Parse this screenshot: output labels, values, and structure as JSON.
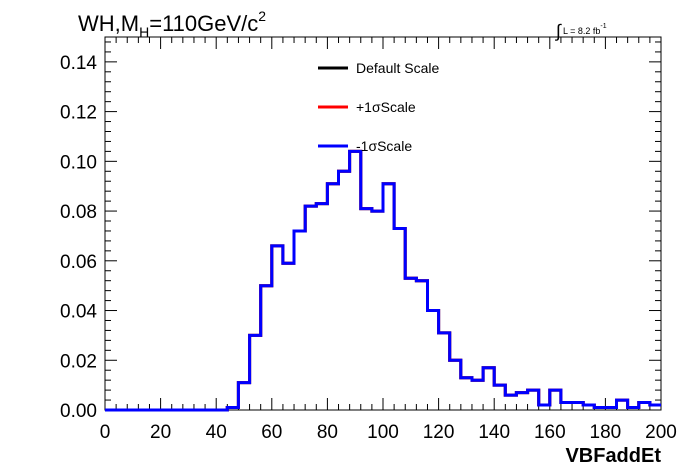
{
  "header": {
    "title_main": "WH,M",
    "title_sub": "H",
    "title_rest": "=110GeV/c",
    "title_sup": "2",
    "lumi_symbol": "∫",
    "lumi_text": "L = 8.2 fb",
    "lumi_sup": "-1"
  },
  "chart_data": {
    "type": "line",
    "title": "WH,M_H=110GeV/c^2",
    "xlabel": "VBFaddEt",
    "ylabel": "",
    "xlim": [
      0,
      200
    ],
    "ylim": [
      0,
      0.15
    ],
    "x_ticks": [
      "0",
      "20",
      "40",
      "60",
      "80",
      "100",
      "120",
      "140",
      "160",
      "180",
      "200"
    ],
    "y_ticks": [
      "0.00",
      "0.02",
      "0.04",
      "0.06",
      "0.08",
      "0.10",
      "0.12",
      "0.14"
    ],
    "grid": false,
    "legend_position": "top-center",
    "bin_width": 4,
    "bin_edges_start": 0,
    "series": [
      {
        "name": "Default Scale",
        "color": "#000000",
        "values": [
          0,
          0,
          0,
          0,
          0,
          0,
          0,
          0,
          0,
          0,
          0,
          0.001,
          0.011,
          0.03,
          0.05,
          0.066,
          0.059,
          0.072,
          0.082,
          0.083,
          0.091,
          0.096,
          0.104,
          0.081,
          0.08,
          0.091,
          0.073,
          0.053,
          0.052,
          0.04,
          0.031,
          0.02,
          0.013,
          0.012,
          0.017,
          0.01,
          0.006,
          0.007,
          0.008,
          0.002,
          0.008,
          0.003,
          0.003,
          0.002,
          0.001,
          0.001,
          0.004,
          0.001,
          0.003,
          0.002
        ]
      },
      {
        "name": "+1σScale",
        "color": "#ff0000",
        "values": [
          0,
          0,
          0,
          0,
          0,
          0,
          0,
          0,
          0,
          0,
          0,
          0.001,
          0.011,
          0.03,
          0.05,
          0.066,
          0.059,
          0.072,
          0.082,
          0.083,
          0.091,
          0.096,
          0.104,
          0.081,
          0.08,
          0.091,
          0.073,
          0.053,
          0.052,
          0.04,
          0.031,
          0.02,
          0.013,
          0.012,
          0.017,
          0.01,
          0.006,
          0.007,
          0.008,
          0.002,
          0.008,
          0.003,
          0.003,
          0.002,
          0.001,
          0.001,
          0.004,
          0.001,
          0.003,
          0.002
        ]
      },
      {
        "name": "-1σScale",
        "color": "#0000ff",
        "values": [
          0,
          0,
          0,
          0,
          0,
          0,
          0,
          0,
          0,
          0,
          0,
          0.001,
          0.011,
          0.03,
          0.05,
          0.066,
          0.059,
          0.072,
          0.082,
          0.083,
          0.091,
          0.096,
          0.104,
          0.081,
          0.08,
          0.091,
          0.073,
          0.053,
          0.052,
          0.04,
          0.031,
          0.02,
          0.013,
          0.012,
          0.017,
          0.01,
          0.006,
          0.007,
          0.008,
          0.002,
          0.008,
          0.003,
          0.003,
          0.002,
          0.001,
          0.001,
          0.004,
          0.001,
          0.003,
          0.002
        ]
      }
    ]
  }
}
